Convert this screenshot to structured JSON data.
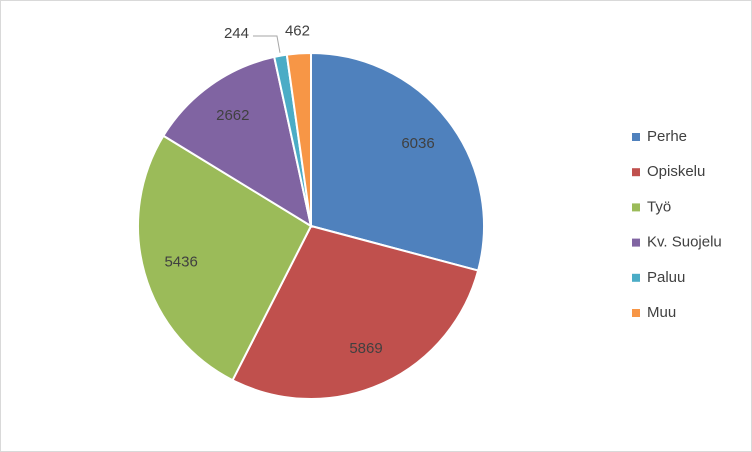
{
  "chart_data": {
    "type": "pie",
    "categories": [
      "Perhe",
      "Opiskelu",
      "Työ",
      "Kv. Suojelu",
      "Paluu",
      "Muu"
    ],
    "values": [
      6036,
      5869,
      5436,
      2662,
      244,
      462
    ],
    "colors": [
      "#4f81bd",
      "#c0504d",
      "#9bbb59",
      "#8064a2",
      "#4bacc6",
      "#f79646"
    ],
    "legend": "right"
  }
}
